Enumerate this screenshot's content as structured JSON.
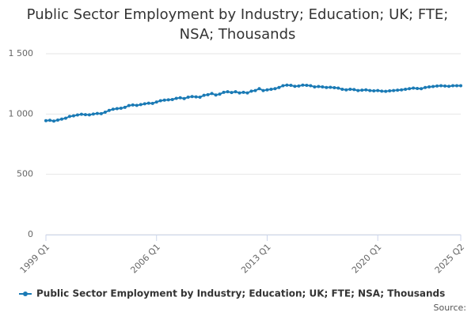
{
  "chart_data": {
    "type": "line",
    "title": "Public Sector Employment by Industry; Education; UK; FTE; NSA; Thousands",
    "categories": [
      "1999 Q1",
      null,
      null,
      null,
      null,
      null,
      null,
      null,
      null,
      null,
      null,
      null,
      null,
      null,
      null,
      null,
      null,
      null,
      null,
      null,
      null,
      null,
      null,
      null,
      null,
      null,
      null,
      null,
      "2006 Q1",
      null,
      null,
      null,
      null,
      null,
      null,
      null,
      null,
      null,
      null,
      null,
      null,
      null,
      null,
      null,
      null,
      null,
      null,
      null,
      null,
      null,
      null,
      null,
      null,
      null,
      null,
      null,
      "2013 Q1",
      null,
      null,
      null,
      null,
      null,
      null,
      null,
      null,
      null,
      null,
      null,
      null,
      null,
      null,
      null,
      null,
      null,
      null,
      null,
      null,
      null,
      null,
      null,
      null,
      null,
      null,
      null,
      "2020 Q1",
      null,
      null,
      null,
      null,
      null,
      null,
      null,
      null,
      null,
      null,
      null,
      null,
      null,
      null,
      null,
      null,
      null,
      null,
      null,
      null,
      "2025 Q2"
    ],
    "series": [
      {
        "name": "Public Sector Employment by Industry; Education; UK; FTE; NSA; Thousands",
        "color": "#1a7ab5",
        "values": [
          945,
          948,
          942,
          950,
          958,
          965,
          980,
          985,
          992,
          998,
          995,
          993,
          1000,
          1005,
          1003,
          1015,
          1030,
          1040,
          1045,
          1048,
          1055,
          1070,
          1075,
          1072,
          1078,
          1085,
          1090,
          1088,
          1100,
          1110,
          1115,
          1118,
          1120,
          1130,
          1135,
          1128,
          1140,
          1145,
          1142,
          1140,
          1155,
          1160,
          1170,
          1158,
          1165,
          1180,
          1185,
          1178,
          1185,
          1175,
          1180,
          1175,
          1190,
          1195,
          1210,
          1195,
          1200,
          1205,
          1210,
          1220,
          1235,
          1240,
          1238,
          1230,
          1232,
          1240,
          1238,
          1235,
          1225,
          1228,
          1225,
          1220,
          1222,
          1218,
          1215,
          1205,
          1200,
          1205,
          1203,
          1195,
          1198,
          1200,
          1195,
          1192,
          1195,
          1190,
          1188,
          1192,
          1195,
          1198,
          1200,
          1205,
          1210,
          1215,
          1212,
          1210,
          1220,
          1225,
          1228,
          1232,
          1235,
          1232,
          1230,
          1235,
          1235,
          1235
        ]
      }
    ],
    "ylim": [
      0,
      1500
    ],
    "yticks": [
      0,
      500,
      {
        "value": 1000,
        "label": "1 000"
      },
      {
        "value": 1500,
        "label": "1 500"
      }
    ],
    "grid": true,
    "legend": "bottom",
    "source": "Source:"
  }
}
